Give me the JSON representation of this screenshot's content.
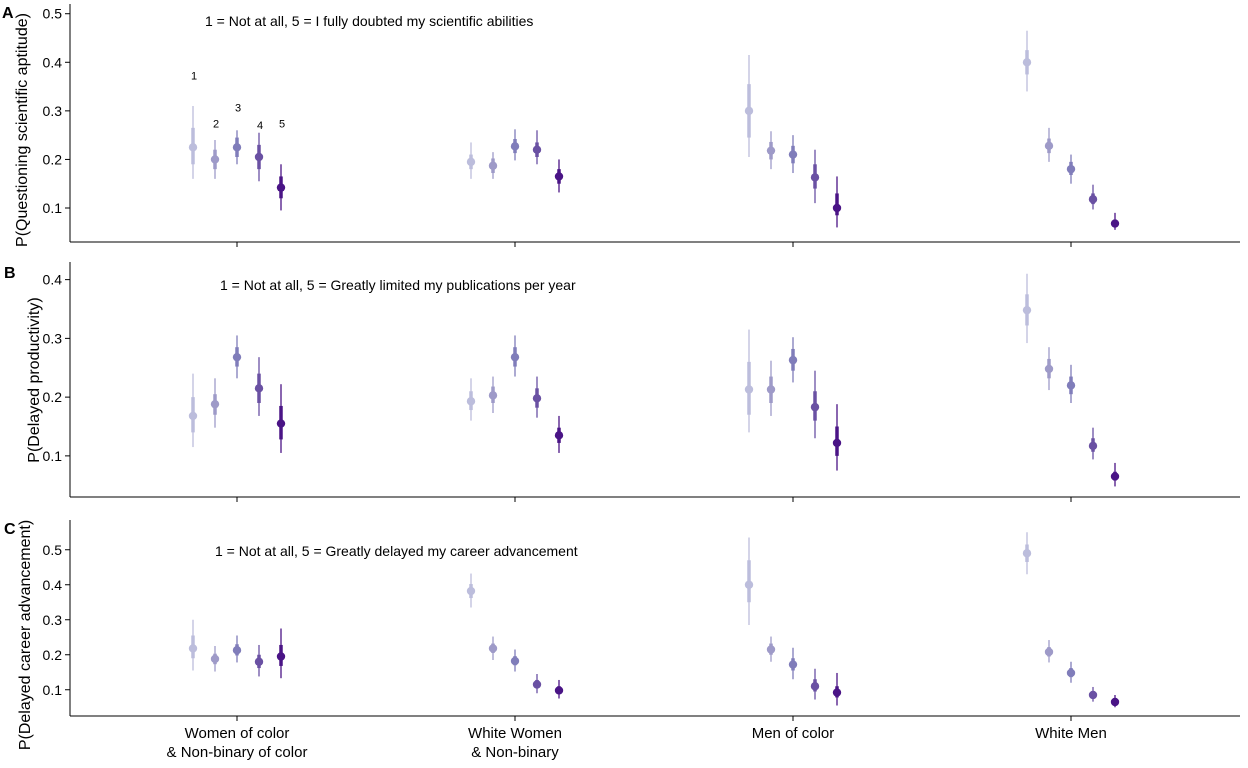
{
  "groups": [
    [
      "Women of color",
      "& Non-binary of color"
    ],
    [
      "White Women",
      "& Non-binary"
    ],
    [
      "Men of color"
    ],
    [
      "White Men"
    ]
  ],
  "response_labels": [
    "1",
    "2",
    "3",
    "4",
    "5"
  ],
  "colors": [
    "#bcbddc",
    "#9e9ac8",
    "#807dba",
    "#6a51a3",
    "#4a1486"
  ],
  "chart_data": [
    {
      "type": "scatter",
      "panel_label": "A",
      "ylabel": "P(Questioning scientific aptitude)",
      "annotation": "1 = Not at all, 5 = I fully doubted my scientific abilities",
      "ylim": [
        0.03,
        0.52
      ],
      "yticks": [
        0.1,
        0.2,
        0.3,
        0.4,
        0.5
      ],
      "series": [
        {
          "values": [
            [
              0.225,
              0.19,
              0.265,
              0.16,
              0.31
            ],
            [
              0.2,
              0.18,
              0.22,
              0.16,
              0.24
            ],
            [
              0.225,
              0.205,
              0.245,
              0.19,
              0.26
            ],
            [
              0.205,
              0.18,
              0.23,
              0.155,
              0.255
            ],
            [
              0.142,
              0.12,
              0.165,
              0.095,
              0.19
            ]
          ]
        },
        {
          "values": [
            [
              0.195,
              0.18,
              0.21,
              0.16,
              0.235
            ],
            [
              0.187,
              0.172,
              0.202,
              0.16,
              0.215
            ],
            [
              0.227,
              0.213,
              0.242,
              0.198,
              0.262
            ],
            [
              0.22,
              0.205,
              0.235,
              0.19,
              0.26
            ],
            [
              0.165,
              0.15,
              0.18,
              0.132,
              0.2
            ]
          ]
        },
        {
          "values": [
            [
              0.3,
              0.245,
              0.355,
              0.205,
              0.415
            ],
            [
              0.218,
              0.2,
              0.236,
              0.18,
              0.258
            ],
            [
              0.21,
              0.192,
              0.228,
              0.172,
              0.25
            ],
            [
              0.163,
              0.14,
              0.19,
              0.11,
              0.22
            ],
            [
              0.1,
              0.085,
              0.13,
              0.06,
              0.165
            ]
          ]
        },
        {
          "values": [
            [
              0.4,
              0.375,
              0.425,
              0.34,
              0.465
            ],
            [
              0.228,
              0.213,
              0.243,
              0.195,
              0.265
            ],
            [
              0.18,
              0.168,
              0.195,
              0.15,
              0.21
            ],
            [
              0.118,
              0.108,
              0.13,
              0.097,
              0.148
            ],
            [
              0.068,
              0.062,
              0.076,
              0.055,
              0.09
            ]
          ]
        }
      ]
    },
    {
      "type": "scatter",
      "panel_label": "B",
      "ylabel": "P(Delayed productivity)",
      "annotation": "1 = Not at all, 5 = Greatly limited my publications per year",
      "ylim": [
        0.03,
        0.43
      ],
      "yticks": [
        0.1,
        0.2,
        0.3,
        0.4
      ],
      "series": [
        {
          "values": [
            [
              0.168,
              0.14,
              0.2,
              0.115,
              0.24
            ],
            [
              0.188,
              0.17,
              0.205,
              0.148,
              0.232
            ],
            [
              0.268,
              0.252,
              0.285,
              0.232,
              0.305
            ],
            [
              0.215,
              0.19,
              0.24,
              0.168,
              0.268
            ],
            [
              0.155,
              0.128,
              0.185,
              0.105,
              0.222
            ]
          ]
        },
        {
          "values": [
            [
              0.193,
              0.178,
              0.21,
              0.16,
              0.232
            ],
            [
              0.203,
              0.19,
              0.218,
              0.173,
              0.235
            ],
            [
              0.268,
              0.252,
              0.285,
              0.235,
              0.305
            ],
            [
              0.198,
              0.182,
              0.215,
              0.165,
              0.235
            ],
            [
              0.135,
              0.122,
              0.148,
              0.105,
              0.168
            ]
          ]
        },
        {
          "values": [
            [
              0.213,
              0.17,
              0.26,
              0.14,
              0.315
            ],
            [
              0.213,
              0.19,
              0.235,
              0.168,
              0.262
            ],
            [
              0.263,
              0.245,
              0.282,
              0.225,
              0.302
            ],
            [
              0.183,
              0.16,
              0.21,
              0.13,
              0.245
            ],
            [
              0.122,
              0.1,
              0.15,
              0.075,
              0.188
            ]
          ]
        },
        {
          "values": [
            [
              0.348,
              0.322,
              0.375,
              0.292,
              0.41
            ],
            [
              0.248,
              0.232,
              0.265,
              0.212,
              0.285
            ],
            [
              0.22,
              0.205,
              0.235,
              0.19,
              0.255
            ],
            [
              0.117,
              0.107,
              0.13,
              0.094,
              0.148
            ],
            [
              0.065,
              0.058,
              0.073,
              0.048,
              0.088
            ]
          ]
        }
      ]
    },
    {
      "type": "scatter",
      "panel_label": "C",
      "ylabel": "P(Delayed career advancement)",
      "annotation": "1 = Not at all, 5 = Greatly delayed my career advancement",
      "ylim": [
        0.025,
        0.585
      ],
      "yticks": [
        0.1,
        0.2,
        0.3,
        0.4,
        0.5
      ],
      "series": [
        {
          "values": [
            [
              0.218,
              0.19,
              0.255,
              0.155,
              0.3
            ],
            [
              0.188,
              0.173,
              0.203,
              0.152,
              0.225
            ],
            [
              0.213,
              0.198,
              0.23,
              0.178,
              0.255
            ],
            [
              0.18,
              0.162,
              0.2,
              0.138,
              0.228
            ],
            [
              0.195,
              0.168,
              0.228,
              0.133,
              0.275
            ]
          ]
        },
        {
          "values": [
            [
              0.382,
              0.362,
              0.402,
              0.335,
              0.432
            ],
            [
              0.218,
              0.205,
              0.232,
              0.185,
              0.252
            ],
            [
              0.182,
              0.17,
              0.196,
              0.152,
              0.215
            ],
            [
              0.115,
              0.105,
              0.128,
              0.09,
              0.145
            ],
            [
              0.098,
              0.088,
              0.11,
              0.075,
              0.128
            ]
          ]
        },
        {
          "values": [
            [
              0.4,
              0.35,
              0.47,
              0.285,
              0.535
            ],
            [
              0.215,
              0.2,
              0.232,
              0.18,
              0.252
            ],
            [
              0.172,
              0.155,
              0.19,
              0.13,
              0.22
            ],
            [
              0.11,
              0.095,
              0.13,
              0.072,
              0.16
            ],
            [
              0.092,
              0.078,
              0.11,
              0.055,
              0.148
            ]
          ]
        },
        {
          "values": [
            [
              0.49,
              0.465,
              0.515,
              0.43,
              0.55
            ],
            [
              0.208,
              0.195,
              0.222,
              0.178,
              0.242
            ],
            [
              0.148,
              0.136,
              0.162,
              0.12,
              0.18
            ],
            [
              0.085,
              0.077,
              0.094,
              0.066,
              0.108
            ],
            [
              0.065,
              0.059,
              0.072,
              0.05,
              0.085
            ]
          ]
        }
      ]
    }
  ]
}
